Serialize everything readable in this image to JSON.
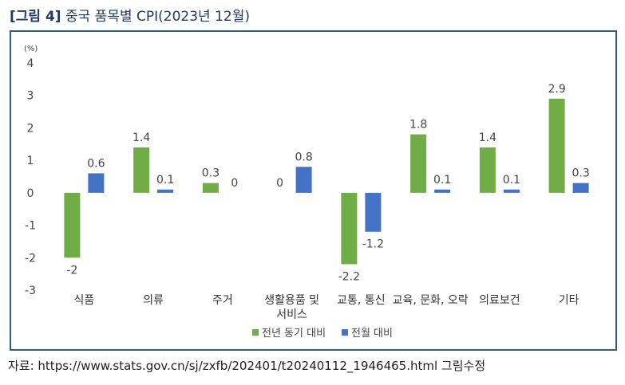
{
  "figure": {
    "label": "[그림 4]",
    "title": "중국 품목별 CPI(2023년 12월)"
  },
  "source": "자료: https://www.stats.gov.cn/sj/zxfb/202401/t20240112_1946465.html 그림수정",
  "colors": {
    "series_yoy": "#70ad47",
    "series_mom": "#4472c4",
    "frame": "#2f5f7f",
    "title": "#1f3a66"
  },
  "chart_data": {
    "type": "bar",
    "unit_label": "(%)",
    "ylim": [
      -3,
      4
    ],
    "yticks": [
      "4",
      "3",
      "2",
      "1",
      "0",
      "-1",
      "-2",
      "-3"
    ],
    "categories": [
      [
        "식품"
      ],
      [
        "의류"
      ],
      [
        "주거"
      ],
      [
        "생활용품 및",
        "서비스"
      ],
      [
        "교통, 통신"
      ],
      [
        "교육, 문화, 오락"
      ],
      [
        "의료보건"
      ],
      [
        "기타"
      ]
    ],
    "series": [
      {
        "name": "전년 동기 대비",
        "values": [
          -2,
          1.4,
          0.3,
          0,
          -2.2,
          1.8,
          1.4,
          2.9
        ],
        "labels": [
          "-2",
          "1.4",
          "0.3",
          "0",
          "-2.2",
          "1.8",
          "1.4",
          "2.9"
        ]
      },
      {
        "name": "전월 대비",
        "values": [
          0.6,
          0.1,
          0,
          0.8,
          -1.2,
          0.1,
          0.1,
          0.3
        ],
        "labels": [
          "0.6",
          "0.1",
          "0",
          "0.8",
          "-1.2",
          "0.1",
          "0.1",
          "0.3"
        ]
      }
    ],
    "legend_position": "bottom",
    "grid": false
  }
}
